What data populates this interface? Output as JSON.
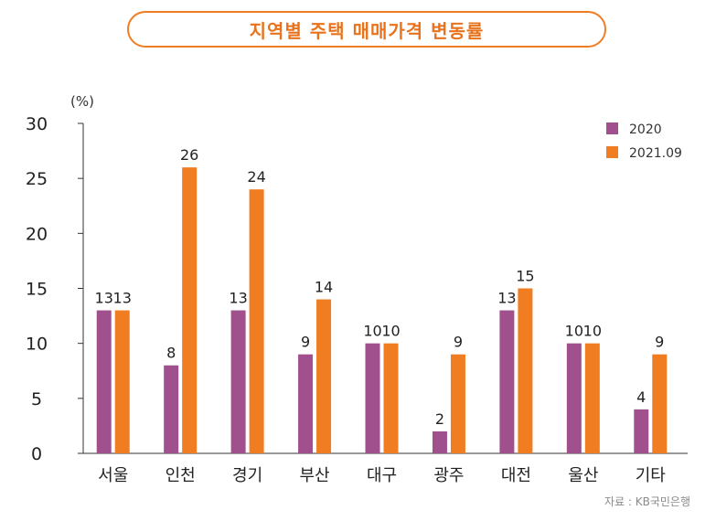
{
  "chart_data": {
    "type": "bar",
    "title": "지역별 주택 매매가격 변동률",
    "ylabel": "(%)",
    "ylim": [
      0,
      30
    ],
    "yticks": [
      0,
      5,
      10,
      15,
      20,
      25,
      30
    ],
    "categories": [
      "서울",
      "인천",
      "경기",
      "부산",
      "대구",
      "광주",
      "대전",
      "울산",
      "기타"
    ],
    "series": [
      {
        "name": "2020",
        "color": "#a0518d",
        "values": [
          13,
          8,
          13,
          9,
          10,
          2,
          13,
          10,
          4
        ]
      },
      {
        "name": "2021.09",
        "color": "#f07d22",
        "values": [
          13,
          26,
          24,
          14,
          10,
          9,
          15,
          10,
          9
        ]
      }
    ],
    "grid": false,
    "legend": "top-right",
    "source": "자료 : KB국민은행"
  }
}
